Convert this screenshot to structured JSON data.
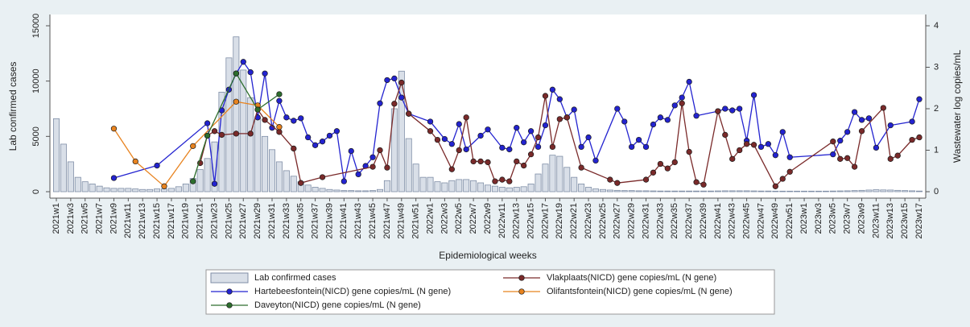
{
  "chart_data": {
    "type": "combo",
    "xlabel": "Epidemiological weeks",
    "ylabel": "Lab confirmed cases",
    "y2label": "Wastewater log copies/mL",
    "ylim": [
      0,
      15000
    ],
    "yticks": [
      0,
      5000,
      10000,
      15000
    ],
    "y2lim": [
      0,
      4
    ],
    "y2ticks": [
      0,
      1,
      2,
      3,
      4
    ],
    "categories": [
      "2021w1",
      null,
      "2021w3",
      null,
      "2021w5",
      null,
      "2021w7",
      null,
      "2021w9",
      null,
      "2021w11",
      null,
      "2021w13",
      null,
      "2021w15",
      null,
      "2021w17",
      null,
      "2021w19",
      null,
      "2021w21",
      null,
      "2021w23",
      null,
      "2021w25",
      null,
      "2021w27",
      null,
      "2021w29",
      null,
      "2021w31",
      null,
      "2021w33",
      null,
      "2021w35",
      null,
      "2021w37",
      null,
      "2021w39",
      null,
      "2021w41",
      null,
      "2021w43",
      null,
      "2021w45",
      null,
      "2021w47",
      null,
      "2021w49",
      null,
      "2021w51",
      null,
      "2022w1",
      null,
      "2022w3",
      null,
      "2022w5",
      null,
      "2022w7",
      null,
      "2022w9",
      null,
      "2022w11",
      null,
      "2022w13",
      null,
      "2022w15",
      null,
      "2022w17",
      null,
      "2022w19",
      null,
      "2022w21",
      null,
      "2022w23",
      null,
      "2022w25",
      null,
      "2022w27",
      null,
      "2022w29",
      null,
      "2022w31",
      null,
      "2022w33",
      null,
      "2022w35",
      null,
      "2022w37",
      null,
      "2022w39",
      null,
      "2022w41",
      null,
      "2022w43",
      null,
      "2022w45",
      null,
      "2022w47",
      null,
      "2022w49",
      null,
      "2022w51",
      null,
      "2023w1",
      null,
      "2023w3",
      null,
      "2023w5",
      null,
      "2023w7",
      null,
      "2023w9",
      null,
      "2023w11",
      null,
      "2023w13",
      null,
      "2023w15",
      null,
      "2023w17"
    ],
    "series": [
      {
        "name": "Lab confirmed cases",
        "type": "bar",
        "color": "#d9dfe8",
        "edge": "#7f8ea6",
        "values": [
          6600,
          4300,
          2700,
          1300,
          900,
          700,
          500,
          350,
          300,
          300,
          300,
          250,
          200,
          200,
          250,
          250,
          300,
          450,
          700,
          1200,
          2000,
          3000,
          4500,
          9000,
          12100,
          14000,
          11000,
          8500,
          6700,
          5000,
          3800,
          2700,
          1900,
          1400,
          900,
          600,
          400,
          300,
          200,
          150,
          100,
          100,
          80,
          80,
          100,
          200,
          1000,
          7500,
          10900,
          4800,
          2500,
          1300,
          1300,
          900,
          800,
          1000,
          1100,
          1100,
          1000,
          800,
          600,
          500,
          400,
          350,
          400,
          450,
          700,
          1600,
          2500,
          3300,
          3200,
          2200,
          1300,
          700,
          400,
          250,
          200,
          150,
          120,
          100,
          100,
          80,
          80,
          70,
          60,
          60,
          60,
          60,
          60,
          60,
          60,
          60,
          70,
          80,
          80,
          80,
          80,
          70,
          60,
          60,
          50,
          50,
          50,
          50,
          50,
          50,
          50,
          50,
          60,
          70,
          80,
          100,
          120,
          150,
          180,
          160,
          150,
          120,
          100,
          80,
          60
        ]
      },
      {
        "name": "Hartebeesfontein(NICD) gene copies/mL (N gene)",
        "type": "line",
        "axis": "y2",
        "color": "#2323d0",
        "values": [
          null,
          null,
          null,
          null,
          null,
          null,
          null,
          null,
          0.33,
          null,
          null,
          null,
          null,
          null,
          0.63,
          null,
          null,
          null,
          null,
          null,
          null,
          1.65,
          0.19,
          1.96,
          2.46,
          2.85,
          3.13,
          2.88,
          1.79,
          2.85,
          1.54,
          2.19,
          1.79,
          1.71,
          1.77,
          1.31,
          1.12,
          1.21,
          1.35,
          1.46,
          0.25,
          0.98,
          0.42,
          0.62,
          0.83,
          2.13,
          2.69,
          2.73,
          2.27,
          1.88,
          null,
          null,
          1.69,
          null,
          1.27,
          1.15,
          1.63,
          1.02,
          null,
          1.35,
          1.5,
          null,
          1.06,
          1.02,
          1.54,
          1.19,
          1.46,
          1.08,
          1.6,
          2.46,
          2.23,
          1.79,
          1.98,
          1.08,
          1.31,
          0.75,
          null,
          null,
          2.0,
          1.69,
          1.08,
          1.25,
          1.08,
          1.62,
          1.79,
          1.73,
          2.08,
          2.27,
          2.65,
          1.83,
          null,
          null,
          1.94,
          2.0,
          1.96,
          2.0,
          1.23,
          2.33,
          1.08,
          1.15,
          0.88,
          1.44,
          0.83,
          null,
          null,
          null,
          null,
          null,
          0.9,
          1.23,
          1.44,
          1.92,
          1.73,
          1.77,
          1.06,
          null,
          1.6,
          null,
          null,
          1.69,
          2.23
        ]
      },
      {
        "name": "Vlakplaats(NICD) gene copies/mL (N gene)",
        "type": "line",
        "axis": "y2",
        "color": "#7a2a2a",
        "values": [
          null,
          null,
          null,
          null,
          null,
          null,
          null,
          null,
          null,
          null,
          null,
          null,
          null,
          null,
          null,
          null,
          null,
          null,
          null,
          null,
          0.69,
          1.35,
          1.46,
          1.37,
          null,
          1.4,
          null,
          1.4,
          1.98,
          1.73,
          null,
          1.44,
          null,
          1.04,
          0.21,
          null,
          null,
          0.35,
          null,
          null,
          null,
          null,
          null,
          null,
          0.6,
          1.0,
          0.58,
          2.12,
          2.63,
          1.88,
          null,
          null,
          1.46,
          1.25,
          null,
          0.54,
          1.0,
          1.79,
          0.73,
          0.73,
          0.71,
          0.25,
          0.29,
          0.25,
          0.73,
          0.63,
          0.9,
          1.31,
          2.31,
          1.08,
          1.75,
          1.79,
          null,
          0.58,
          null,
          null,
          null,
          0.29,
          0.21,
          null,
          null,
          null,
          0.29,
          0.46,
          0.67,
          0.56,
          0.71,
          2.13,
          0.96,
          0.23,
          0.17,
          null,
          1.94,
          1.37,
          0.79,
          1.0,
          1.15,
          1.13,
          null,
          null,
          0.13,
          0.31,
          0.48,
          null,
          null,
          null,
          null,
          null,
          1.21,
          0.79,
          0.81,
          0.6,
          1.46,
          null,
          null,
          2.02,
          0.79,
          0.87,
          null,
          1.25,
          1.31
        ]
      },
      {
        "name": "Olifantsfontein(NICD) gene copies/mL (N gene)",
        "type": "line",
        "axis": "y2",
        "color": "#e8831f",
        "values": [
          null,
          null,
          null,
          null,
          null,
          null,
          null,
          null,
          1.52,
          null,
          null,
          0.73,
          null,
          null,
          null,
          0.13,
          null,
          null,
          null,
          1.1,
          null,
          null,
          null,
          null,
          null,
          2.17,
          null,
          null,
          2.08,
          null,
          null,
          1.56,
          null,
          null,
          null,
          null,
          null,
          null,
          null,
          null,
          null,
          null,
          null,
          null,
          null,
          null,
          null,
          null,
          null,
          null,
          null,
          null,
          null,
          null,
          null,
          null,
          null,
          null,
          null,
          null,
          null,
          null,
          null,
          null,
          null,
          null,
          null,
          null,
          null,
          null,
          null,
          null,
          null,
          null,
          null,
          null,
          null,
          null,
          null,
          null,
          null,
          null,
          null,
          null,
          null,
          null,
          null,
          null,
          null,
          null,
          null,
          null,
          null,
          null,
          null,
          null,
          null,
          null,
          null,
          null,
          null,
          null,
          null,
          null,
          null,
          null,
          null,
          null,
          null,
          null,
          null,
          null,
          null,
          null,
          null,
          null,
          null,
          null,
          null,
          null,
          null
        ]
      },
      {
        "name": "Daveyton(NICD) gene copies/mL (N gene)",
        "type": "line",
        "axis": "y2",
        "color": "#2d6e2d",
        "values": [
          null,
          null,
          null,
          null,
          null,
          null,
          null,
          null,
          null,
          null,
          null,
          null,
          null,
          null,
          null,
          null,
          null,
          null,
          null,
          0.25,
          null,
          1.35,
          null,
          null,
          null,
          2.85,
          null,
          null,
          1.98,
          null,
          null,
          2.35,
          null,
          null,
          null,
          null,
          null,
          null,
          null,
          null,
          null,
          null,
          null,
          null,
          null,
          null,
          null,
          null,
          null,
          null,
          null,
          null,
          null,
          null,
          null,
          null,
          null,
          null,
          null,
          null,
          null,
          null,
          null,
          null,
          null,
          null,
          null,
          null,
          null,
          null,
          null,
          null,
          null,
          null,
          null,
          null,
          null,
          null,
          null,
          null,
          null,
          null,
          null,
          null,
          null,
          null,
          null,
          null,
          null,
          null,
          null,
          null,
          null,
          null,
          null,
          null,
          null,
          null,
          null,
          null,
          null,
          null,
          null,
          null,
          null,
          null,
          null,
          null,
          null,
          null,
          null,
          null,
          null,
          null,
          null,
          null,
          null,
          null,
          null,
          null,
          null
        ]
      }
    ]
  }
}
